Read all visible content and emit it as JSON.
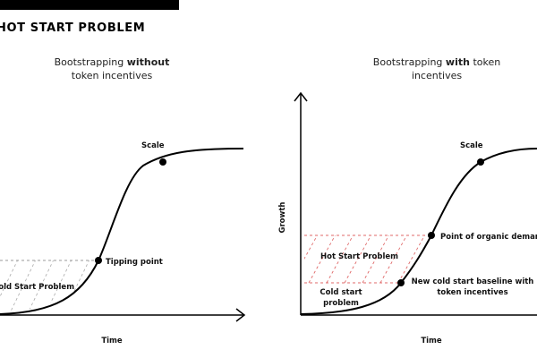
{
  "header": {
    "title": "HOT START PROBLEM"
  },
  "left_panel": {
    "subtitle_pre": "Bootstrapping ",
    "subtitle_bold": "without",
    "subtitle_post": "token incentives",
    "x_axis": "Time",
    "labels": {
      "scale": "Scale",
      "tipping_point": "Tipping point",
      "cold_start": "Cold Start Problem"
    }
  },
  "right_panel": {
    "subtitle_pre": "Bootstrapping ",
    "subtitle_bold": "with",
    "subtitle_post_1": "token",
    "subtitle_post_2": "incentives",
    "x_axis": "Time",
    "y_axis": "Growth",
    "labels": {
      "scale": "Scale",
      "organic_demand": "Point of organic demand",
      "hot_start": "Hot Start Problem",
      "cold_start_1": "Cold start",
      "cold_start_2": "problem",
      "baseline_1": "New cold start baseline with",
      "baseline_2": "token incentives"
    }
  },
  "colors": {
    "curve": "#000000",
    "grey_dash": "#999999",
    "red_dash": "#e06a6a",
    "bar": "#000000"
  }
}
